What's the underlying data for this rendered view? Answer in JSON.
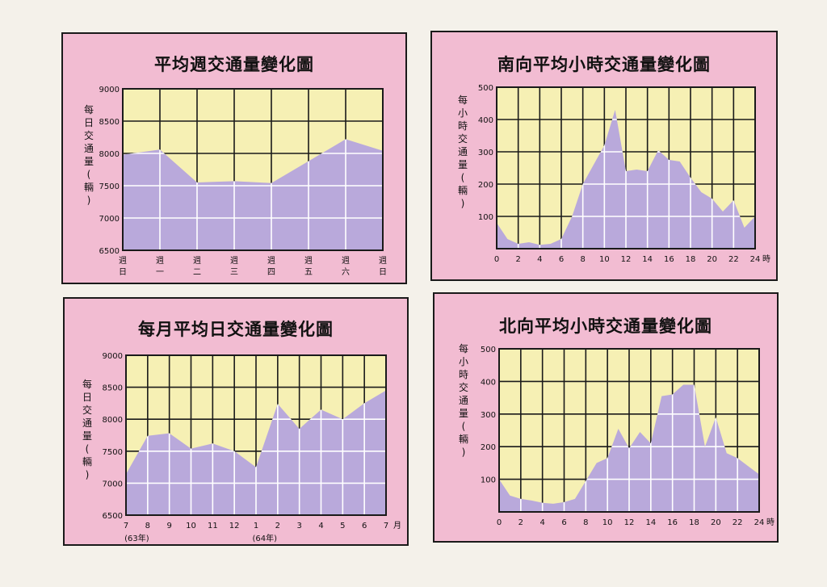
{
  "colors": {
    "panel_bg": "#f2bcd2",
    "plot_bg": "#f6f0b4",
    "area_fill": "#b9a9db",
    "grid": "#1a1a1a",
    "area_grid": "#ffffff"
  },
  "chart_data": [
    {
      "type": "area",
      "title": "平均週交通量變化圖",
      "ylabel": "每日交通量(輛)",
      "ylim": [
        6500,
        9000
      ],
      "yticks": [
        6500,
        7000,
        7500,
        8000,
        8500,
        9000
      ],
      "categories": [
        [
          "週",
          "日"
        ],
        [
          "週",
          "一"
        ],
        [
          "週",
          "二"
        ],
        [
          "週",
          "三"
        ],
        [
          "週",
          "四"
        ],
        [
          "週",
          "五"
        ],
        [
          "週",
          "六"
        ],
        [
          "週",
          "日"
        ]
      ],
      "x": [
        0,
        1,
        2,
        3,
        4,
        5,
        6,
        7
      ],
      "values": [
        7980,
        8060,
        7550,
        7570,
        7540,
        7880,
        8220,
        8040
      ]
    },
    {
      "type": "area",
      "title": "南向平均小時交通量變化圖",
      "ylabel": "每小時交通量(輛)",
      "xunit": "時",
      "ylim": [
        0,
        500
      ],
      "yticks": [
        100,
        200,
        300,
        400,
        500
      ],
      "xticks": [
        0,
        2,
        4,
        6,
        8,
        10,
        12,
        14,
        16,
        18,
        20,
        22,
        24
      ],
      "x": [
        0,
        1,
        2,
        3,
        4,
        5,
        6,
        7,
        8,
        9,
        10,
        11,
        12,
        13,
        14,
        15,
        16,
        17,
        18,
        19,
        20,
        21,
        22,
        23,
        24
      ],
      "values": [
        80,
        30,
        15,
        20,
        12,
        15,
        30,
        100,
        200,
        260,
        320,
        430,
        240,
        245,
        240,
        305,
        275,
        270,
        220,
        175,
        155,
        115,
        150,
        65,
        100
      ]
    },
    {
      "type": "area",
      "title": "每月平均日交通量變化圖",
      "ylabel": "每日交通量(輛)",
      "xunit": "月",
      "ylim": [
        6500,
        9000
      ],
      "yticks": [
        6500,
        7000,
        7500,
        8000,
        8500,
        9000
      ],
      "xticks": [
        "7",
        "8",
        "9",
        "10",
        "11",
        "12",
        "1",
        "2",
        "3",
        "4",
        "5",
        "6",
        "7"
      ],
      "year_labels": [
        "(63年)",
        "(64年)"
      ],
      "x": [
        0,
        1,
        2,
        3,
        4,
        5,
        6,
        7,
        8,
        9,
        10,
        11,
        12
      ],
      "values": [
        7140,
        7740,
        7780,
        7540,
        7620,
        7500,
        7250,
        8240,
        7850,
        8150,
        8000,
        8250,
        8450
      ]
    },
    {
      "type": "area",
      "title": "北向平均小時交通量變化圖",
      "ylabel": "每小時交通量(輛)",
      "xunit": "時",
      "ylim": [
        0,
        500
      ],
      "yticks": [
        100,
        200,
        300,
        400,
        500
      ],
      "xticks": [
        0,
        2,
        4,
        6,
        8,
        10,
        12,
        14,
        16,
        18,
        20,
        22,
        24
      ],
      "x": [
        0,
        1,
        2,
        3,
        4,
        5,
        6,
        7,
        8,
        9,
        10,
        11,
        12,
        13,
        14,
        15,
        16,
        17,
        18,
        19,
        20,
        21,
        22,
        23,
        24
      ],
      "values": [
        100,
        50,
        40,
        35,
        28,
        25,
        30,
        40,
        95,
        150,
        165,
        255,
        195,
        245,
        210,
        355,
        360,
        390,
        390,
        200,
        290,
        180,
        165,
        140,
        115
      ]
    }
  ]
}
